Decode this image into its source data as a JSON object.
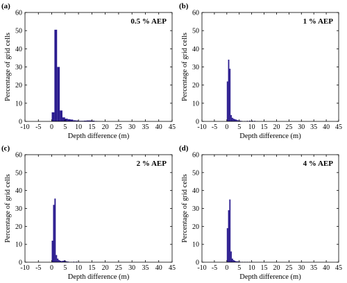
{
  "figure": {
    "bar_color": "#2b1c8f"
  },
  "chart_data": [
    {
      "type": "bar",
      "panel_label": "(a)",
      "title": "0.5 % AEP",
      "xlabel": "Depth difference (m)",
      "ylabel": "Percentage of grid cells",
      "xlim": [
        -10,
        45
      ],
      "ylim": [
        0,
        60
      ],
      "xticks": [
        -10,
        -5,
        0,
        5,
        10,
        15,
        20,
        25,
        30,
        35,
        40,
        45
      ],
      "yticks": [
        0,
        10,
        20,
        30,
        40,
        50,
        60
      ],
      "bin_width": 1,
      "bins": [
        {
          "x": 0,
          "value": 5
        },
        {
          "x": 1,
          "value": 50.5
        },
        {
          "x": 2,
          "value": 30
        },
        {
          "x": 3,
          "value": 6
        },
        {
          "x": 4,
          "value": 2.2
        },
        {
          "x": 5,
          "value": 1.5
        },
        {
          "x": 6,
          "value": 1.2
        },
        {
          "x": 7,
          "value": 1.0
        },
        {
          "x": 8,
          "value": 0.6
        },
        {
          "x": 9,
          "value": 0.5
        },
        {
          "x": 10,
          "value": 0.3
        },
        {
          "x": 11,
          "value": 0.3
        },
        {
          "x": 12,
          "value": 0.4
        },
        {
          "x": 13,
          "value": 0.5
        },
        {
          "x": 14,
          "value": 0.5
        },
        {
          "x": 15,
          "value": 0.4
        },
        {
          "x": 16,
          "value": 0.2
        },
        {
          "x": 17,
          "value": 0.1
        }
      ]
    },
    {
      "type": "bar",
      "panel_label": "(b)",
      "title": "1 % AEP",
      "xlabel": "Depth difference (m)",
      "ylabel": "Percentage of grid cells",
      "xlim": [
        -10,
        45
      ],
      "ylim": [
        0,
        60
      ],
      "xticks": [
        -10,
        -5,
        0,
        5,
        10,
        15,
        20,
        25,
        30,
        35,
        40,
        45
      ],
      "yticks": [
        0,
        10,
        20,
        30,
        40,
        50,
        60
      ],
      "bin_width": 0.5,
      "bins": [
        {
          "x": 0,
          "value": 22
        },
        {
          "x": 0.5,
          "value": 34
        },
        {
          "x": 1,
          "value": 29
        },
        {
          "x": 1.5,
          "value": 3.5
        },
        {
          "x": 2,
          "value": 2
        },
        {
          "x": 2.5,
          "value": 1.5
        },
        {
          "x": 3,
          "value": 1.2
        },
        {
          "x": 3.5,
          "value": 1.0
        },
        {
          "x": 4,
          "value": 0.7
        },
        {
          "x": 4.5,
          "value": 0.5
        },
        {
          "x": 5,
          "value": 0.4
        },
        {
          "x": 5.5,
          "value": 0.3
        },
        {
          "x": 6,
          "value": 0.2
        },
        {
          "x": 7,
          "value": 0.2
        },
        {
          "x": 8,
          "value": 0.3
        },
        {
          "x": 9,
          "value": 0.4
        },
        {
          "x": 10,
          "value": 0.4
        },
        {
          "x": 11,
          "value": 0.3
        },
        {
          "x": 12,
          "value": 0.1
        }
      ]
    },
    {
      "type": "bar",
      "panel_label": "(c)",
      "title": "2 % AEP",
      "xlabel": "Depth difference (m)",
      "ylabel": "Percentage of grid cells",
      "xlim": [
        -10,
        45
      ],
      "ylim": [
        0,
        60
      ],
      "xticks": [
        -10,
        -5,
        0,
        5,
        10,
        15,
        20,
        25,
        30,
        35,
        40,
        45
      ],
      "yticks": [
        0,
        10,
        20,
        30,
        40,
        50,
        60
      ],
      "bin_width": 0.5,
      "bins": [
        {
          "x": 0,
          "value": 12
        },
        {
          "x": 0.5,
          "value": 32
        },
        {
          "x": 1,
          "value": 35.5
        },
        {
          "x": 1.5,
          "value": 4
        },
        {
          "x": 2,
          "value": 2
        },
        {
          "x": 2.5,
          "value": 1.2
        },
        {
          "x": 3,
          "value": 0.8
        },
        {
          "x": 3.5,
          "value": 0.6
        },
        {
          "x": 4,
          "value": 0.8
        },
        {
          "x": 4.5,
          "value": 1.0
        },
        {
          "x": 5,
          "value": 0.6
        },
        {
          "x": 5.5,
          "value": 0.4
        },
        {
          "x": 6,
          "value": 0.3
        },
        {
          "x": 7,
          "value": 0.2
        },
        {
          "x": 8,
          "value": 0.3
        },
        {
          "x": 9,
          "value": 0.3
        },
        {
          "x": 10,
          "value": 0.2
        }
      ]
    },
    {
      "type": "bar",
      "panel_label": "(d)",
      "title": "4 % AEP",
      "xlabel": "Depth difference (m)",
      "ylabel": "Percentage of grid cells",
      "xlim": [
        -10,
        45
      ],
      "ylim": [
        0,
        60
      ],
      "xticks": [
        -10,
        -5,
        0,
        5,
        10,
        15,
        20,
        25,
        30,
        35,
        40,
        45
      ],
      "yticks": [
        0,
        10,
        20,
        30,
        40,
        50,
        60
      ],
      "bin_width": 0.5,
      "bins": [
        {
          "x": 0,
          "value": 19
        },
        {
          "x": 0.5,
          "value": 29
        },
        {
          "x": 1,
          "value": 35
        },
        {
          "x": 1.5,
          "value": 6
        },
        {
          "x": 2,
          "value": 2
        },
        {
          "x": 2.5,
          "value": 1.2
        },
        {
          "x": 3,
          "value": 0.8
        },
        {
          "x": 3.5,
          "value": 0.5
        },
        {
          "x": 4,
          "value": 0.5
        },
        {
          "x": 4.5,
          "value": 0.4
        },
        {
          "x": 5,
          "value": 0.3
        },
        {
          "x": 6,
          "value": 0.2
        },
        {
          "x": 7,
          "value": 0.2
        },
        {
          "x": 8,
          "value": 0.2
        },
        {
          "x": 9,
          "value": 0.2
        },
        {
          "x": 10,
          "value": 0.1
        }
      ]
    }
  ]
}
